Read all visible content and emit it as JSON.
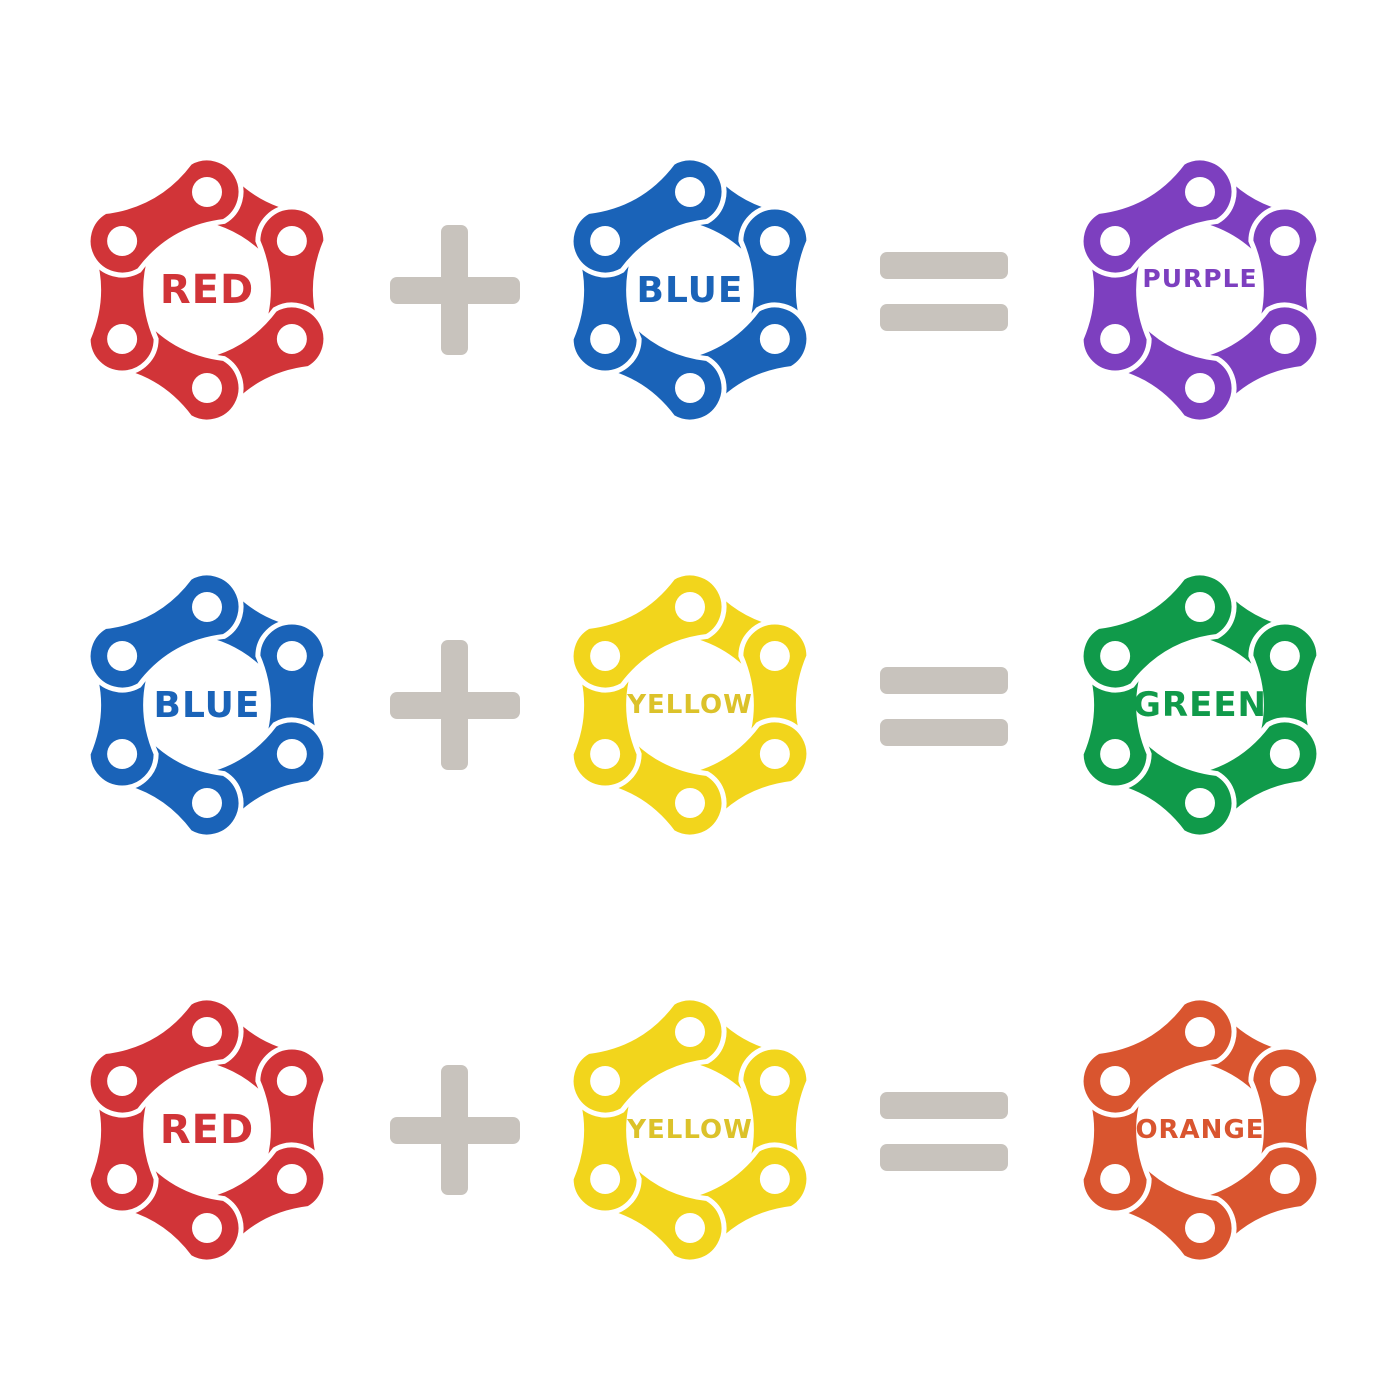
{
  "operator_color": "#c8c3bd",
  "equations": [
    {
      "left": {
        "label": "RED",
        "color": "#d13438",
        "text_color": "#d13438"
      },
      "right": {
        "label": "BLUE",
        "color": "#1a63b8",
        "text_color": "#1a63b8"
      },
      "result": {
        "label": "PURPLE",
        "color": "#7d3fbf",
        "text_color": "#7d3fbf"
      }
    },
    {
      "left": {
        "label": "BLUE",
        "color": "#1a63b8",
        "text_color": "#1a63b8"
      },
      "right": {
        "label": "YELLOW",
        "color": "#f2d51c",
        "text_color": "#dcc22a"
      },
      "result": {
        "label": "GREEN",
        "color": "#109a4a",
        "text_color": "#109a4a"
      }
    },
    {
      "left": {
        "label": "RED",
        "color": "#d13438",
        "text_color": "#d13438"
      },
      "right": {
        "label": "YELLOW",
        "color": "#f2d51c",
        "text_color": "#dcc22a"
      },
      "result": {
        "label": "ORANGE",
        "color": "#d9552f",
        "text_color": "#d9552f"
      }
    }
  ]
}
